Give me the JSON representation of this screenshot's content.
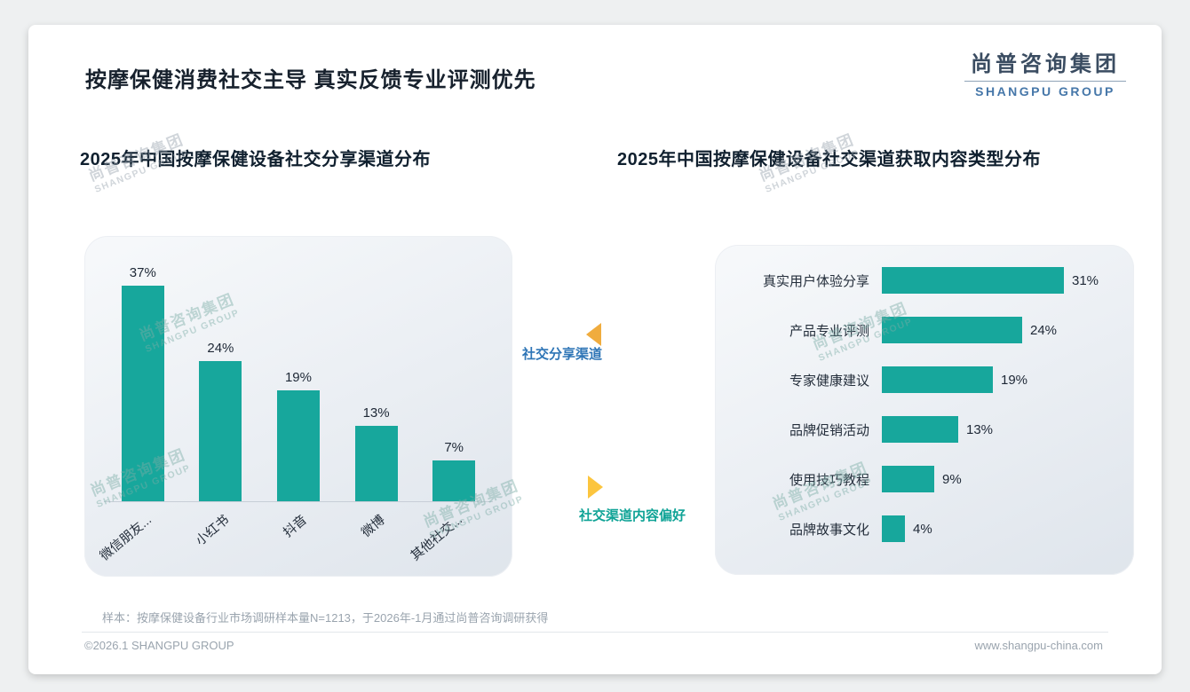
{
  "page": {
    "title": "按摩保健消费社交主导 真实反馈专业评测优先",
    "footnote": "样本：按摩保健设备行业市场调研样本量N=1213，于2026年-1月通过尚普咨询调研获得",
    "footer_left": "©2026.1 SHANGPU GROUP",
    "footer_right": "www.shangpu-china.com"
  },
  "logo": {
    "cn": "尚普咨询集团",
    "en": "SHANGPU GROUP"
  },
  "watermark": {
    "cn": "尚普咨询集团",
    "en": "SHANGPU GROUP"
  },
  "annotations": {
    "share_channels_label": "社交分享渠道",
    "content_preference_label": "社交渠道内容偏好"
  },
  "colors": {
    "accent_teal": "#17A79C",
    "annotation_blue": "#2E75B6",
    "annotation_teal": "#0FA396",
    "arrow_orange": "#F0AC3E",
    "arrow_yellow": "#FCC53E"
  },
  "chart_data": [
    {
      "type": "bar",
      "orientation": "vertical",
      "title": "2025年中国按摩保健设备社交分享渠道分布",
      "categories": [
        "微信朋友...",
        "小红书",
        "抖音",
        "微博",
        "其他社交..."
      ],
      "values": [
        37,
        24,
        19,
        13,
        7
      ],
      "unit": "%",
      "ylim": [
        0,
        40
      ],
      "grid": false,
      "bar_color": "#17A79C"
    },
    {
      "type": "bar",
      "orientation": "horizontal",
      "title": "2025年中国按摩保健设备社交渠道获取内容类型分布",
      "categories": [
        "真实用户体验分享",
        "产品专业评测",
        "专家健康建议",
        "品牌促销活动",
        "使用技巧教程",
        "品牌故事文化"
      ],
      "values": [
        31,
        24,
        19,
        13,
        9,
        4
      ],
      "unit": "%",
      "xlim": [
        0,
        35
      ],
      "grid": false,
      "bar_color": "#17A79C"
    }
  ]
}
